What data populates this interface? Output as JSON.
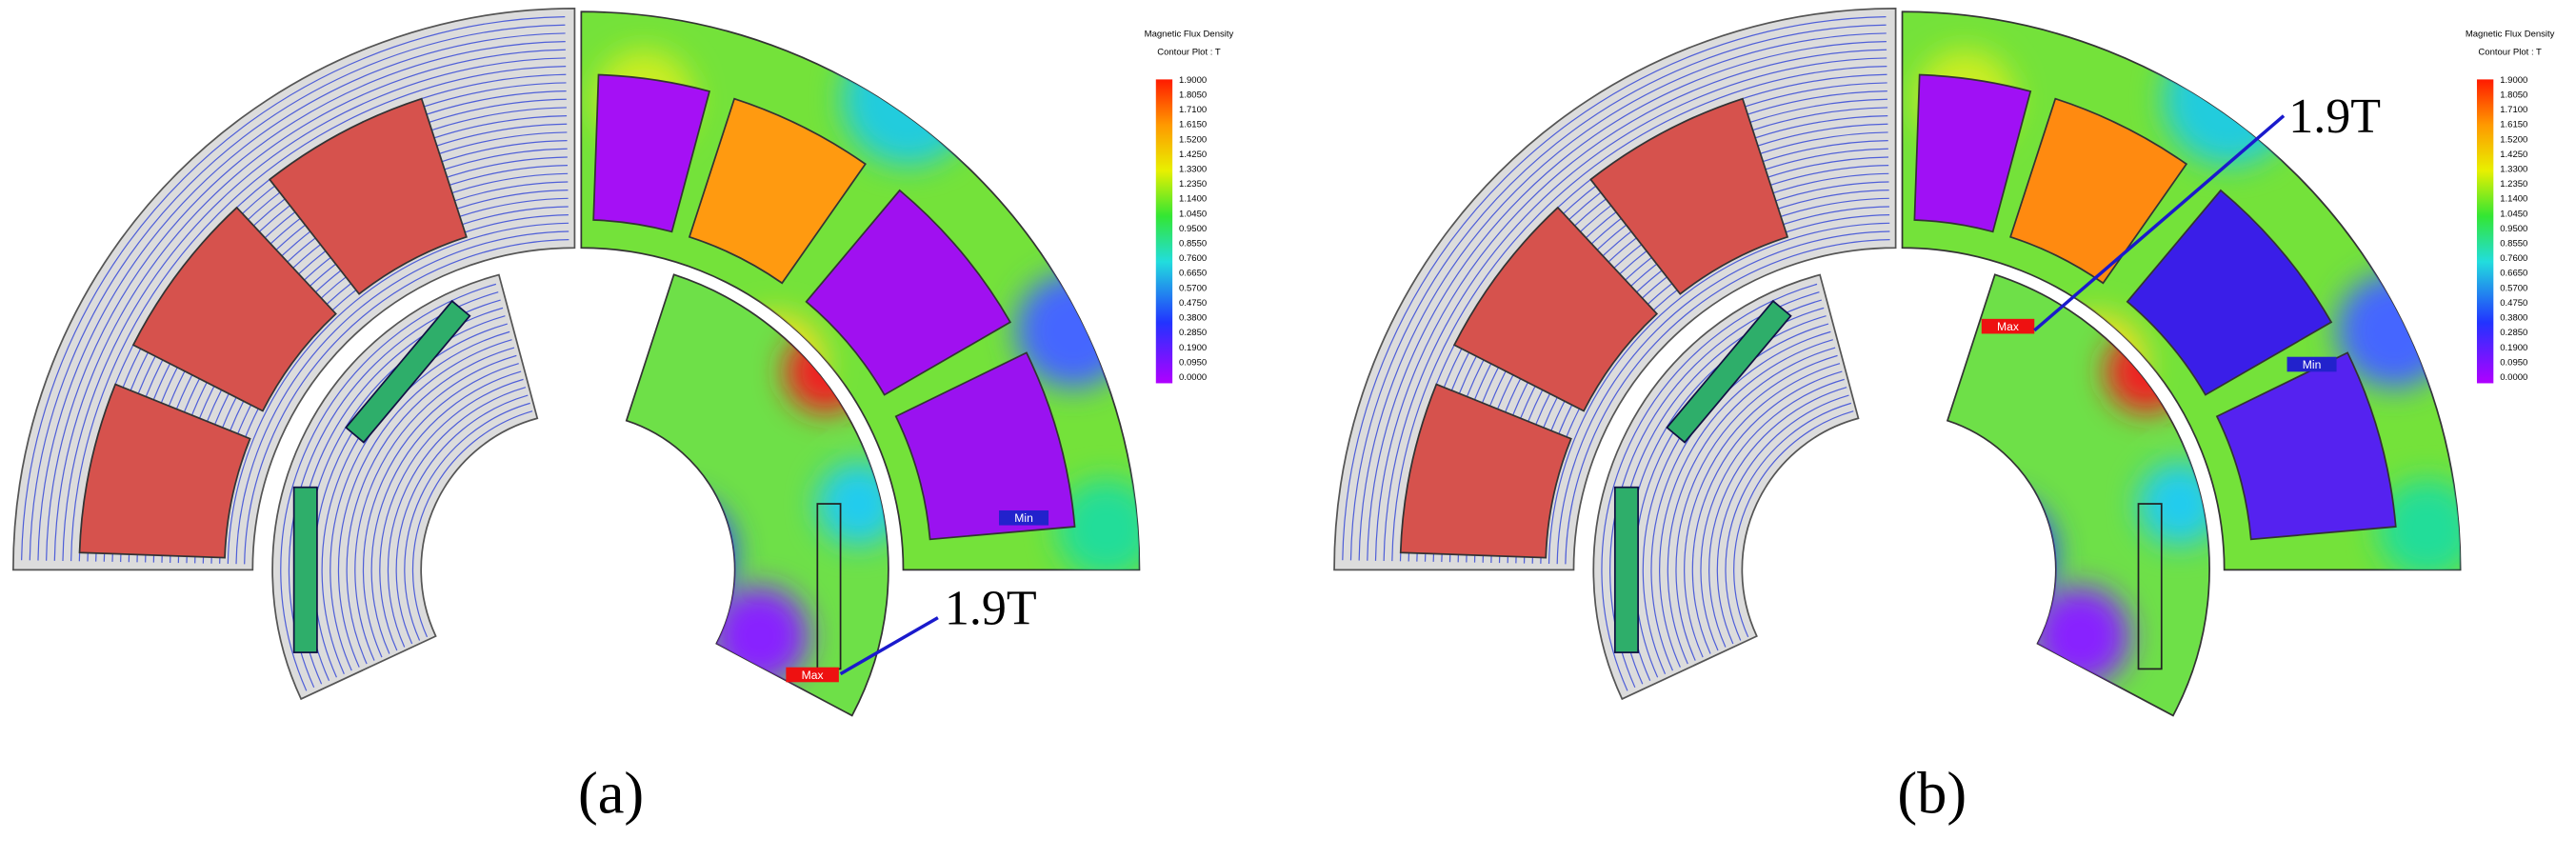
{
  "panels": [
    {
      "label": "(a)",
      "annotation": "1.9T",
      "max_label": "Max",
      "min_label": "Min",
      "legend": {
        "title": "Magnetic Flux Density",
        "subtitle": "Contour Plot : T",
        "ticks": [
          "1.9000",
          "1.8050",
          "1.7100",
          "1.6150",
          "1.5200",
          "1.4250",
          "1.3300",
          "1.2350",
          "1.1400",
          "1.0450",
          "0.9500",
          "0.8550",
          "0.7600",
          "0.6650",
          "0.5700",
          "0.4750",
          "0.3800",
          "0.2850",
          "0.1900",
          "0.0950",
          "0.0000"
        ]
      }
    },
    {
      "label": "(b)",
      "annotation": "1.9T",
      "max_label": "Max",
      "min_label": "Min",
      "legend": {
        "title": "Magnetic Flux Density",
        "subtitle": "Contour Plot : T",
        "ticks": [
          "1.9000",
          "1.8050",
          "1.7100",
          "1.6150",
          "1.5200",
          "1.4250",
          "1.3300",
          "1.2350",
          "1.1400",
          "1.0450",
          "0.9500",
          "0.8550",
          "0.7600",
          "0.6650",
          "0.5700",
          "0.4750",
          "0.3800",
          "0.2850",
          "0.1900",
          "0.0950",
          "0.0000"
        ]
      }
    }
  ]
}
